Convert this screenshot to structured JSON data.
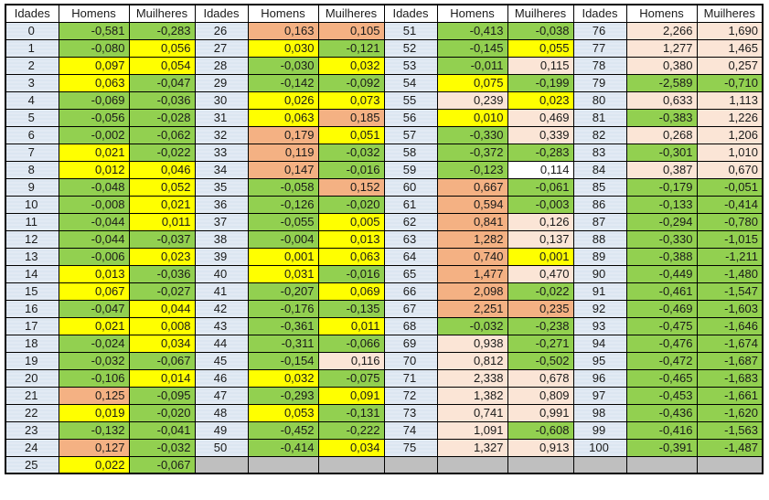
{
  "table": {
    "column_headers": [
      "Idades",
      "Homens",
      "Muilheres"
    ],
    "colors": {
      "age_cell": "#dce6f1",
      "header_bg": "#ffffff",
      "border": "#000000",
      "text": "#1a1a1a",
      "codes": {
        "g": "#92d050",
        "y": "#ffff00",
        "s": "#f4b183",
        "p": "#fbe5d6",
        "w": "#ffffff",
        "x": "#bfbfbf"
      },
      "legend": {
        "g": "green-negative",
        "y": "yellow-small-positive",
        "s": "salmon-strong-positive",
        "p": "light-pink-positive",
        "w": "no-fill",
        "x": "gray-empty"
      }
    },
    "groups": [
      {
        "rows": [
          {
            "a": "0",
            "h": "-0,581",
            "hc": "g",
            "m": "-0,283",
            "mc": "g"
          },
          {
            "a": "1",
            "h": "-0,080",
            "hc": "g",
            "m": "0,056",
            "mc": "y"
          },
          {
            "a": "2",
            "h": "0,097",
            "hc": "y",
            "m": "0,054",
            "mc": "y"
          },
          {
            "a": "3",
            "h": "0,063",
            "hc": "y",
            "m": "-0,047",
            "mc": "g"
          },
          {
            "a": "4",
            "h": "-0,069",
            "hc": "g",
            "m": "-0,036",
            "mc": "g"
          },
          {
            "a": "5",
            "h": "-0,056",
            "hc": "g",
            "m": "-0,028",
            "mc": "g"
          },
          {
            "a": "6",
            "h": "-0,002",
            "hc": "g",
            "m": "-0,062",
            "mc": "g"
          },
          {
            "a": "7",
            "h": "0,021",
            "hc": "y",
            "m": "-0,022",
            "mc": "g"
          },
          {
            "a": "8",
            "h": "0,012",
            "hc": "y",
            "m": "0,046",
            "mc": "y"
          },
          {
            "a": "9",
            "h": "-0,048",
            "hc": "g",
            "m": "0,052",
            "mc": "y"
          },
          {
            "a": "10",
            "h": "-0,008",
            "hc": "g",
            "m": "0,021",
            "mc": "y"
          },
          {
            "a": "11",
            "h": "-0,044",
            "hc": "g",
            "m": "0,011",
            "mc": "y"
          },
          {
            "a": "12",
            "h": "-0,044",
            "hc": "g",
            "m": "-0,037",
            "mc": "g"
          },
          {
            "a": "13",
            "h": "-0,006",
            "hc": "g",
            "m": "0,023",
            "mc": "y"
          },
          {
            "a": "14",
            "h": "0,013",
            "hc": "y",
            "m": "-0,036",
            "mc": "g"
          },
          {
            "a": "15",
            "h": "0,067",
            "hc": "y",
            "m": "-0,027",
            "mc": "g"
          },
          {
            "a": "16",
            "h": "-0,047",
            "hc": "g",
            "m": "0,044",
            "mc": "y"
          },
          {
            "a": "17",
            "h": "0,021",
            "hc": "y",
            "m": "0,008",
            "mc": "y"
          },
          {
            "a": "18",
            "h": "-0,024",
            "hc": "g",
            "m": "0,034",
            "mc": "y"
          },
          {
            "a": "19",
            "h": "-0,032",
            "hc": "g",
            "m": "-0,067",
            "mc": "g"
          },
          {
            "a": "20",
            "h": "-0,106",
            "hc": "g",
            "m": "0,014",
            "mc": "y"
          },
          {
            "a": "21",
            "h": "0,125",
            "hc": "s",
            "m": "-0,095",
            "mc": "g"
          },
          {
            "a": "22",
            "h": "0,019",
            "hc": "y",
            "m": "-0,020",
            "mc": "g"
          },
          {
            "a": "23",
            "h": "-0,132",
            "hc": "g",
            "m": "-0,041",
            "mc": "g"
          },
          {
            "a": "24",
            "h": "0,127",
            "hc": "s",
            "m": "-0,032",
            "mc": "g"
          },
          {
            "a": "25",
            "h": "0,022",
            "hc": "y",
            "m": "-0,067",
            "mc": "g"
          }
        ]
      },
      {
        "rows": [
          {
            "a": "26",
            "h": "0,163",
            "hc": "s",
            "m": "0,105",
            "mc": "s"
          },
          {
            "a": "27",
            "h": "0,030",
            "hc": "y",
            "m": "-0,121",
            "mc": "g"
          },
          {
            "a": "28",
            "h": "-0,030",
            "hc": "g",
            "m": "0,032",
            "mc": "y"
          },
          {
            "a": "29",
            "h": "-0,142",
            "hc": "g",
            "m": "-0,092",
            "mc": "g"
          },
          {
            "a": "30",
            "h": "0,026",
            "hc": "y",
            "m": "0,073",
            "mc": "y"
          },
          {
            "a": "31",
            "h": "0,063",
            "hc": "y",
            "m": "0,185",
            "mc": "s"
          },
          {
            "a": "32",
            "h": "0,179",
            "hc": "s",
            "m": "0,051",
            "mc": "y"
          },
          {
            "a": "33",
            "h": "0,119",
            "hc": "s",
            "m": "-0,032",
            "mc": "g"
          },
          {
            "a": "34",
            "h": "0,147",
            "hc": "s",
            "m": "-0,016",
            "mc": "g"
          },
          {
            "a": "35",
            "h": "-0,058",
            "hc": "g",
            "m": "0,152",
            "mc": "s"
          },
          {
            "a": "36",
            "h": "-0,126",
            "hc": "g",
            "m": "-0,020",
            "mc": "g"
          },
          {
            "a": "37",
            "h": "-0,055",
            "hc": "g",
            "m": "0,005",
            "mc": "y"
          },
          {
            "a": "38",
            "h": "-0,004",
            "hc": "g",
            "m": "0,013",
            "mc": "y"
          },
          {
            "a": "39",
            "h": "0,001",
            "hc": "y",
            "m": "0,063",
            "mc": "y"
          },
          {
            "a": "40",
            "h": "0,031",
            "hc": "y",
            "m": "-0,016",
            "mc": "g"
          },
          {
            "a": "41",
            "h": "-0,207",
            "hc": "g",
            "m": "0,069",
            "mc": "y"
          },
          {
            "a": "42",
            "h": "-0,176",
            "hc": "g",
            "m": "-0,135",
            "mc": "g"
          },
          {
            "a": "43",
            "h": "-0,361",
            "hc": "g",
            "m": "0,011",
            "mc": "y"
          },
          {
            "a": "44",
            "h": "-0,311",
            "hc": "g",
            "m": "-0,066",
            "mc": "g"
          },
          {
            "a": "45",
            "h": "-0,154",
            "hc": "g",
            "m": "0,116",
            "mc": "p"
          },
          {
            "a": "46",
            "h": "0,032",
            "hc": "y",
            "m": "-0,075",
            "mc": "g"
          },
          {
            "a": "47",
            "h": "-0,293",
            "hc": "g",
            "m": "0,091",
            "mc": "y"
          },
          {
            "a": "48",
            "h": "0,053",
            "hc": "y",
            "m": "-0,131",
            "mc": "g"
          },
          {
            "a": "49",
            "h": "-0,452",
            "hc": "g",
            "m": "-0,222",
            "mc": "g"
          },
          {
            "a": "50",
            "h": "-0,414",
            "hc": "g",
            "m": "0,034",
            "mc": "y"
          },
          {
            "a": "",
            "h": "",
            "hc": "x",
            "m": "",
            "mc": "x",
            "ac": "x"
          }
        ]
      },
      {
        "rows": [
          {
            "a": "51",
            "h": "-0,413",
            "hc": "g",
            "m": "-0,038",
            "mc": "g"
          },
          {
            "a": "52",
            "h": "-0,145",
            "hc": "g",
            "m": "0,055",
            "mc": "y"
          },
          {
            "a": "53",
            "h": "-0,011",
            "hc": "g",
            "m": "0,115",
            "mc": "p"
          },
          {
            "a": "54",
            "h": "0,075",
            "hc": "y",
            "m": "-0,199",
            "mc": "g"
          },
          {
            "a": "55",
            "h": "0,239",
            "hc": "p",
            "m": "0,023",
            "mc": "y"
          },
          {
            "a": "56",
            "h": "0,010",
            "hc": "y",
            "m": "0,469",
            "mc": "p"
          },
          {
            "a": "57",
            "h": "-0,330",
            "hc": "g",
            "m": "0,339",
            "mc": "p"
          },
          {
            "a": "58",
            "h": "-0,372",
            "hc": "g",
            "m": "-0,283",
            "mc": "g"
          },
          {
            "a": "59",
            "h": "-0,123",
            "hc": "g",
            "m": "0,114",
            "mc": "w"
          },
          {
            "a": "60",
            "h": "0,667",
            "hc": "s",
            "m": "-0,061",
            "mc": "g"
          },
          {
            "a": "61",
            "h": "0,594",
            "hc": "s",
            "m": "-0,003",
            "mc": "g"
          },
          {
            "a": "62",
            "h": "0,841",
            "hc": "s",
            "m": "0,126",
            "mc": "p"
          },
          {
            "a": "63",
            "h": "1,282",
            "hc": "s",
            "m": "0,137",
            "mc": "p"
          },
          {
            "a": "64",
            "h": "0,740",
            "hc": "s",
            "m": "0,001",
            "mc": "y"
          },
          {
            "a": "65",
            "h": "1,477",
            "hc": "s",
            "m": "0,470",
            "mc": "p"
          },
          {
            "a": "66",
            "h": "2,098",
            "hc": "s",
            "m": "-0,022",
            "mc": "g"
          },
          {
            "a": "67",
            "h": "2,251",
            "hc": "s",
            "m": "0,235",
            "mc": "s"
          },
          {
            "a": "68",
            "h": "-0,032",
            "hc": "g",
            "m": "-0,238",
            "mc": "g"
          },
          {
            "a": "69",
            "h": "0,938",
            "hc": "p",
            "m": "-0,271",
            "mc": "g"
          },
          {
            "a": "70",
            "h": "0,812",
            "hc": "p",
            "m": "-0,502",
            "mc": "g"
          },
          {
            "a": "71",
            "h": "2,338",
            "hc": "p",
            "m": "0,678",
            "mc": "p"
          },
          {
            "a": "72",
            "h": "1,382",
            "hc": "p",
            "m": "0,809",
            "mc": "p"
          },
          {
            "a": "73",
            "h": "0,741",
            "hc": "p",
            "m": "0,991",
            "mc": "p"
          },
          {
            "a": "74",
            "h": "1,091",
            "hc": "p",
            "m": "-0,608",
            "mc": "g"
          },
          {
            "a": "75",
            "h": "1,327",
            "hc": "p",
            "m": "0,913",
            "mc": "p"
          },
          {
            "a": "",
            "h": "",
            "hc": "x",
            "m": "",
            "mc": "x",
            "ac": "x"
          }
        ]
      },
      {
        "rows": [
          {
            "a": "76",
            "h": "2,266",
            "hc": "p",
            "m": "1,690",
            "mc": "p"
          },
          {
            "a": "77",
            "h": "1,277",
            "hc": "p",
            "m": "1,465",
            "mc": "p"
          },
          {
            "a": "78",
            "h": "0,380",
            "hc": "p",
            "m": "0,257",
            "mc": "p"
          },
          {
            "a": "79",
            "h": "-2,589",
            "hc": "g",
            "m": "-0,710",
            "mc": "g"
          },
          {
            "a": "80",
            "h": "0,633",
            "hc": "p",
            "m": "1,113",
            "mc": "p"
          },
          {
            "a": "81",
            "h": "-0,383",
            "hc": "g",
            "m": "1,226",
            "mc": "p"
          },
          {
            "a": "82",
            "h": "0,268",
            "hc": "p",
            "m": "1,206",
            "mc": "p"
          },
          {
            "a": "83",
            "h": "-0,301",
            "hc": "g",
            "m": "1,010",
            "mc": "p"
          },
          {
            "a": "84",
            "h": "0,387",
            "hc": "p",
            "m": "0,670",
            "mc": "p"
          },
          {
            "a": "85",
            "h": "-0,179",
            "hc": "g",
            "m": "-0,051",
            "mc": "g"
          },
          {
            "a": "86",
            "h": "-0,133",
            "hc": "g",
            "m": "-0,414",
            "mc": "g"
          },
          {
            "a": "87",
            "h": "-0,294",
            "hc": "g",
            "m": "-0,780",
            "mc": "g"
          },
          {
            "a": "88",
            "h": "-0,330",
            "hc": "g",
            "m": "-1,015",
            "mc": "g"
          },
          {
            "a": "89",
            "h": "-0,388",
            "hc": "g",
            "m": "-1,211",
            "mc": "g"
          },
          {
            "a": "90",
            "h": "-0,449",
            "hc": "g",
            "m": "-1,480",
            "mc": "g"
          },
          {
            "a": "91",
            "h": "-0,461",
            "hc": "g",
            "m": "-1,547",
            "mc": "g"
          },
          {
            "a": "92",
            "h": "-0,469",
            "hc": "g",
            "m": "-1,603",
            "mc": "g"
          },
          {
            "a": "93",
            "h": "-0,475",
            "hc": "g",
            "m": "-1,646",
            "mc": "g"
          },
          {
            "a": "94",
            "h": "-0,476",
            "hc": "g",
            "m": "-1,674",
            "mc": "g"
          },
          {
            "a": "95",
            "h": "-0,472",
            "hc": "g",
            "m": "-1,687",
            "mc": "g"
          },
          {
            "a": "96",
            "h": "-0,465",
            "hc": "g",
            "m": "-1,683",
            "mc": "g"
          },
          {
            "a": "97",
            "h": "-0,453",
            "hc": "g",
            "m": "-1,661",
            "mc": "g"
          },
          {
            "a": "98",
            "h": "-0,436",
            "hc": "g",
            "m": "-1,620",
            "mc": "g"
          },
          {
            "a": "99",
            "h": "-0,416",
            "hc": "g",
            "m": "-1,563",
            "mc": "g"
          },
          {
            "a": "100",
            "h": "-0,391",
            "hc": "g",
            "m": "-1,487",
            "mc": "g"
          },
          {
            "a": "",
            "h": "",
            "hc": "x",
            "m": "",
            "mc": "x",
            "ac": "x"
          }
        ]
      }
    ]
  }
}
